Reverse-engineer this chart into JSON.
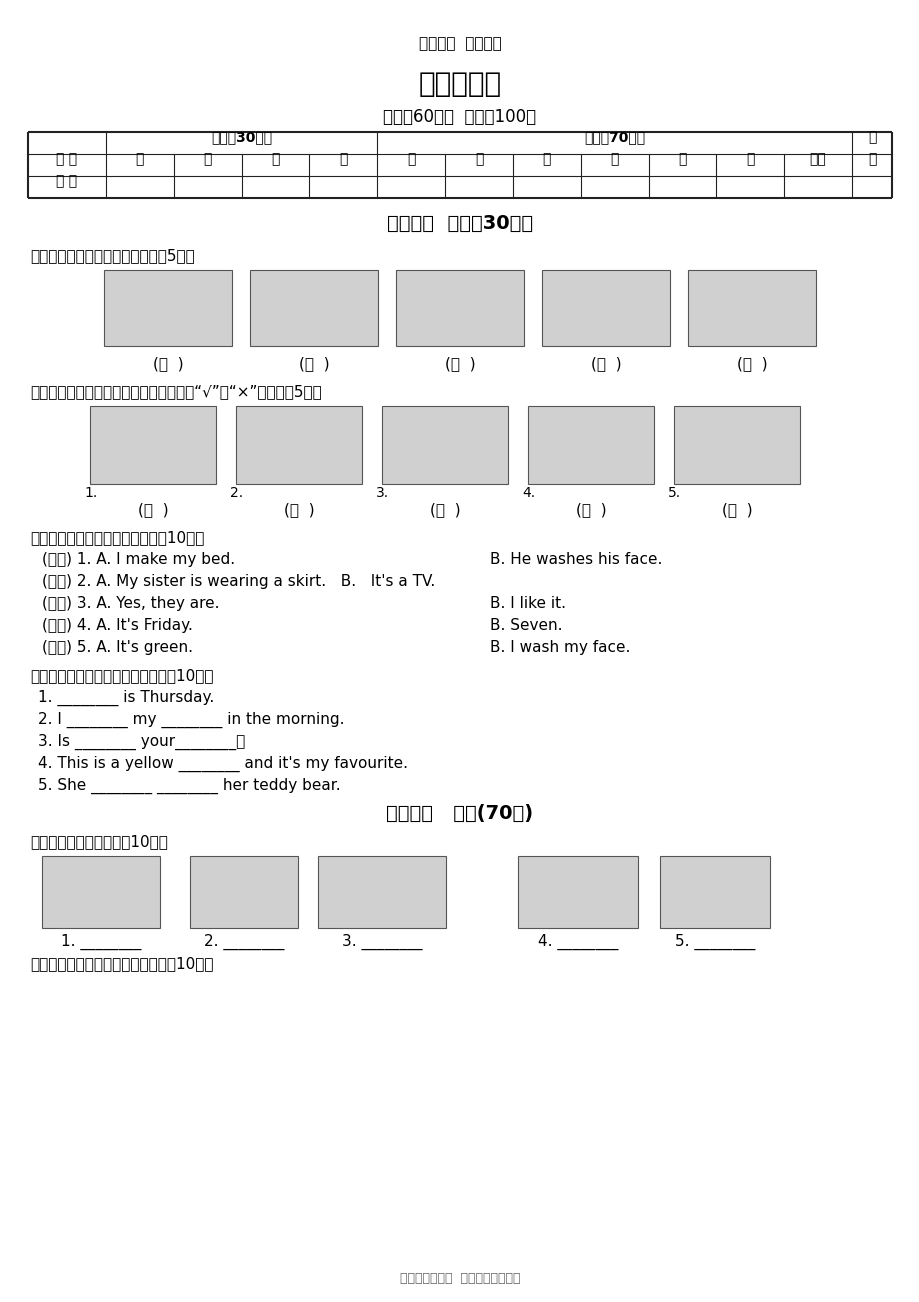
{
  "bg_color": "#ffffff",
  "header_subtitle": "精品文档  用心整理",
  "title": "期中检测卷",
  "time_info": "时间：60分钟  满分：100分",
  "section1_title": "第一部分  听力（30分）",
  "q1_title": "一、听录音，给下列图片排序。（5分）",
  "q2_title": "二、听录音，判断下列图片与所听句子是“√”否“×”一致。（5分）",
  "q3_title": "三、听录音，选择正确的答语。（10分）",
  "q3_items": [
    [
      "(　　) 1. A. I make my bed.",
      "B. He washes his face."
    ],
    [
      "(　　) 2. A. My sister is wearing a skirt.   B.   It's a TV.",
      ""
    ],
    [
      "(　　) 3. A. Yes, they are.",
      "B. I like it."
    ],
    [
      "(　　) 4. A. It's Friday.",
      "B. Seven."
    ],
    [
      "(　　) 5. A. It's green.",
      "B. I wash my face."
    ]
  ],
  "q4_title": "四、听录音，根据录音内容填空。（10分）",
  "q4_items": [
    "1. ________ is Thursday.",
    "2. I ________ my ________ in the morning.",
    "3. Is ________ your________？",
    "4. This is a yellow ________ and it's my favourite.",
    "5. She ________ ________ her teddy bear."
  ],
  "section2_title": "第二部分   笔试(70分)",
  "q5_title": "五、看图片，写单词。（10分）",
  "q5_labels": [
    "1. ________",
    "2. ________",
    "3. ________",
    "4. ________",
    "5. ________"
  ],
  "q6_title": "六、根据提示，把句子补充完整。（10分）",
  "footer": "资料来源于网络  仅供免费交流使用",
  "table_nums": [
    "一",
    "二",
    "三",
    "四",
    "五",
    "六",
    "七",
    "八",
    "九",
    "十",
    "十一"
  ]
}
